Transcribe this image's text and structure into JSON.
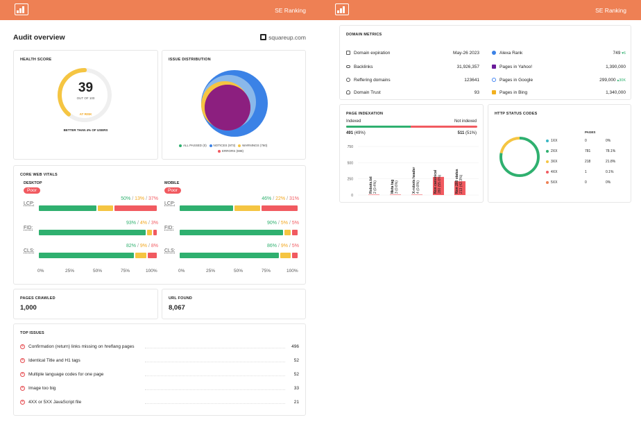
{
  "brand": "SE Ranking",
  "left": {
    "title": "Audit overview",
    "domain": "squareup.com",
    "health": {
      "title": "HEALTH SCORE",
      "score": "39",
      "out_of": "OUT OF 100",
      "status": "AT RISK",
      "better": "BETTER THAN 4% OF USERS",
      "score_fraction": 0.39
    },
    "issue_dist": {
      "title": "ISSUE DISTRIBUTION",
      "legend": [
        {
          "label": "ALL PASSED (0)",
          "color": "#2fb06f"
        },
        {
          "label": "NOTICES (973)",
          "color": "#3b82e6"
        },
        {
          "label": "WARNINGS (760)",
          "color": "#f5c542"
        },
        {
          "label": "ERRORS (698)",
          "color": "#f15a60"
        }
      ]
    },
    "cwv": {
      "title": "CORE WEB VITALS",
      "desktop": {
        "label": "DESKTOP",
        "badge": "Poor",
        "metrics": [
          {
            "name": "LCP:",
            "good": "50%",
            "mid": "13%",
            "bad": "37%",
            "g": 50,
            "m": 13,
            "b": 37
          },
          {
            "name": "FID:",
            "good": "93%",
            "mid": "4%",
            "bad": "3%",
            "g": 93,
            "m": 4,
            "b": 3
          },
          {
            "name": "CLS:",
            "good": "82%",
            "mid": "9%",
            "bad": "8%",
            "g": 82,
            "m": 9,
            "b": 8
          }
        ]
      },
      "mobile": {
        "label": "MOBILE",
        "badge": "Poor",
        "metrics": [
          {
            "name": "LCP:",
            "good": "46%",
            "mid": "22%",
            "bad": "31%",
            "g": 46,
            "m": 22,
            "b": 31
          },
          {
            "name": "FID:",
            "good": "90%",
            "mid": "5%",
            "bad": "5%",
            "g": 90,
            "m": 5,
            "b": 5
          },
          {
            "name": "CLS:",
            "good": "86%",
            "mid": "9%",
            "bad": "5%",
            "g": 86,
            "m": 9,
            "b": 5
          }
        ]
      },
      "axis": [
        "0%",
        "25%",
        "50%",
        "75%",
        "100%"
      ],
      "sep": "/"
    },
    "pages_crawled": {
      "title": "PAGES CRAWLED",
      "value": "1,000"
    },
    "url_found": {
      "title": "URL FOUND",
      "value": "8,067"
    },
    "top_issues": {
      "title": "TOP ISSUES",
      "items": [
        {
          "label": "Confirmation (return) links missing on hreflang pages",
          "count": "496"
        },
        {
          "label": "Identical Title and H1 tags",
          "count": "52"
        },
        {
          "label": "Multiple language codes for one page",
          "count": "52"
        },
        {
          "label": "Image too big",
          "count": "33"
        },
        {
          "label": "4XX or 5XX JavaScript file",
          "count": "21"
        }
      ]
    }
  },
  "right": {
    "domain_metrics": {
      "title": "DOMAIN METRICS",
      "left": [
        {
          "label": "Domain expiration",
          "value": "May-26 2023",
          "icon": "calendar-icon"
        },
        {
          "label": "Backlinks",
          "value": "31,926,357",
          "icon": "link-icon"
        },
        {
          "label": "Reffering domains",
          "value": "123641",
          "icon": "globe-icon"
        },
        {
          "label": "Domain Trust",
          "value": "93",
          "icon": "trust-icon"
        }
      ],
      "right": [
        {
          "label": "Alexa Rank",
          "value": "749",
          "delta": "▾6",
          "icon": "alexa-icon",
          "icon_color": "#3b82e6"
        },
        {
          "label": "Pages in Yahoo!",
          "value": "1,390,000",
          "delta": "",
          "icon": "yahoo-icon",
          "icon_color": "#6a1b9a"
        },
        {
          "label": "Pages in Google",
          "value": "299,000",
          "delta": "▴30K",
          "icon": "google-icon",
          "icon_color": "#4285f4"
        },
        {
          "label": "Pages in Bing",
          "value": "1,340,000",
          "delta": "",
          "icon": "bing-icon",
          "icon_color": "#f2b01e"
        }
      ]
    },
    "indexation": {
      "title": "PAGE INDEXATION",
      "indexed_label": "Indexed",
      "not_indexed_label": "Not indexed",
      "indexed": "491",
      "indexed_pct": "(49%)",
      "not_indexed": "511",
      "not_indexed_pct": "(51%)",
      "indexed_fraction": 0.49,
      "chart_data": {
        "type": "bar",
        "categories": [
          "Robots.txt",
          "Meta tag",
          "X-robots header",
          "Non canonical",
          "Non 200 status"
        ],
        "labels": [
          "Robots.txt\n2 (0.4%)",
          "Meta tag\n3 (0.6%)",
          "X-robots header\n4 (0.8%)",
          "Non canonical\n280 (55.6%)",
          "Non 200 status\n213 (42.3%)"
        ],
        "values": [
          2,
          3,
          4,
          280,
          213
        ],
        "ylim": [
          0,
          750
        ],
        "yticks": [
          "750",
          "500",
          "250",
          "0"
        ]
      }
    },
    "http": {
      "title": "HTTP STATUS CODES",
      "col_pages": "PAGES",
      "rows": [
        {
          "code": "1XX",
          "pages": "0",
          "pct": "0%",
          "color": "#39b7c3",
          "v": 0
        },
        {
          "code": "2XX",
          "pages": "781",
          "pct": "78.1%",
          "color": "#2fb06f",
          "v": 781
        },
        {
          "code": "3XX",
          "pages": "218",
          "pct": "21.8%",
          "color": "#f5c542",
          "v": 218
        },
        {
          "code": "4XX",
          "pages": "1",
          "pct": "0.1%",
          "color": "#f15a60",
          "v": 1
        },
        {
          "code": "5XX",
          "pages": "0",
          "pct": "0%",
          "color": "#ee8054",
          "v": 0
        }
      ]
    }
  }
}
